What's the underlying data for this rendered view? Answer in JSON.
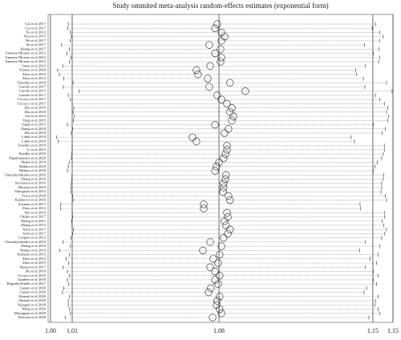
{
  "chart_data": {
    "type": "forest",
    "title": "Study ommited meta-analysis random-effects estimates (exponential form)",
    "categories": [
      "Cai et al 2017",
      "Cai et al 2017",
      "Xu et al 2013",
      "Vera et al 2015",
      "Hu et al 2017",
      "Su et al 2017",
      "Hoang et al 2017",
      "Jimenez-Moreno et al 2012",
      "Jimenez-Moreno et al 2012",
      "Jimenez-Moreno et al 2012",
      "Omer et al 2013",
      "Yoneno et al 2020",
      "Zhou et al 2016",
      "Zhou et al 2014",
      "Ebrahim et al 2018",
      "Garrido et al 2017",
      "Garrido et al 2015",
      "Garrido et al 2017",
      "Ciccacci et al 2017",
      "Ciccacci et al 2017",
      "Zhu et al 2016",
      "Zhu et al 2016",
      "Lin et al 2014",
      "Yang et al 2015",
      "Singh et al 2015",
      "Zhang et al 2018",
      "Zhu et al 2019",
      "Labib et al 2019",
      "Labib et al 2019",
      "Fesenko et al 2019",
      "Li et al 2015",
      "Kindler et al 2019",
      "Papathanasiou et al 2020",
      "Okabe et al 2014",
      "Mahara et al 2018",
      "Mahara et al 2018",
      "Chatzikyriakidou et al 2010",
      "Zhang et al 2010",
      "Srivastava et al 2016",
      "Hiraoka et al 2019",
      "Sakoguchi et al 2013",
      "Vreca et al 2018",
      "Kaidarova et al 2016",
      "Ausman et al 2017",
      "Zhou et al 2012",
      "Wei et al 2014",
      "Okubo et al 2017",
      "Zhang et al 2011",
      "Zhang et al 2013",
      "Avila et al 2017",
      "Avila et al 2017",
      "Lofgren et al 2012",
      "Chatzikyriakidou et al 2010",
      "Zhang et al 2010",
      "Shaker et al 2019",
      "Hashemi et al 2013",
      "Zhou et al 2012",
      "Zhou et al 2015",
      "Hassen et al 2017",
      "Hu et al 2019",
      "Ciccacci et al 2016",
      "Ayadeen et al 2018",
      "Boguska-Kubik et al 2017",
      "Caputo et al 2020",
      "Caputo et al 2020",
      "Ahmadi et al 2020",
      "Ahmadi et al 2020",
      "Vajargah et al 2018",
      "Wang et al 2020",
      "Massignan et al 2020",
      "Keewan et al 2020"
    ],
    "values": [
      1.0754,
      1.0744,
      1.0773,
      1.0787,
      1.0773,
      1.0718,
      1.0769,
      1.0744,
      1.0773,
      1.0769,
      1.0722,
      1.066,
      1.0667,
      1.0711,
      1.0812,
      1.0718,
      1.0881,
      1.0754,
      1.0773,
      1.0798,
      1.082,
      1.0812,
      1.0827,
      1.082,
      1.0744,
      1.0805,
      1.0787,
      1.0642,
      1.066,
      1.0798,
      1.0798,
      1.0791,
      1.0783,
      1.0762,
      1.0751,
      1.0744,
      1.0794,
      1.0791,
      1.0783,
      1.0783,
      1.078,
      1.0805,
      1.0812,
      1.0693,
      1.0693,
      1.0798,
      1.0802,
      1.0787,
      1.0794,
      1.0812,
      1.0802,
      1.0783,
      1.0722,
      1.0773,
      1.0689,
      1.0765,
      1.0736,
      1.0758,
      1.0722,
      1.0744,
      1.0765,
      1.0744,
      1.0758,
      1.0725,
      1.0715,
      1.0765,
      1.0754,
      1.0751,
      1.0765,
      1.0773,
      1.0733
    ],
    "lower": [
      1.008,
      1.0078,
      1.009,
      1.0095,
      1.0088,
      1.005,
      1.0085,
      1.0075,
      1.0092,
      1.0086,
      1.0055,
      1.0032,
      1.004,
      1.006,
      1.0102,
      1.0058,
      1.013,
      1.008,
      1.009,
      1.0098,
      1.0105,
      1.0102,
      1.0108,
      1.0104,
      1.0076,
      1.01,
      1.0094,
      1.0028,
      1.0035,
      1.0098,
      1.0098,
      1.0096,
      1.0094,
      1.0084,
      1.008,
      1.0076,
      1.0097,
      1.0096,
      1.0094,
      1.0093,
      1.0092,
      1.01,
      1.0102,
      1.0045,
      1.0046,
      1.0098,
      1.01,
      1.0095,
      1.0097,
      1.0103,
      1.01,
      1.0093,
      1.0056,
      1.009,
      1.0042,
      1.0086,
      1.007,
      1.0082,
      1.0056,
      1.0076,
      1.0086,
      1.0076,
      1.0082,
      1.006,
      1.0054,
      1.0086,
      1.008,
      1.008,
      1.0086,
      1.009,
      1.0066
    ],
    "upper": [
      1.147,
      1.1455,
      1.149,
      1.1505,
      1.1488,
      1.142,
      1.1485,
      1.146,
      1.149,
      1.1484,
      1.1425,
      1.138,
      1.1385,
      1.1415,
      1.152,
      1.1422,
      1.1545,
      1.147,
      1.149,
      1.151,
      1.1525,
      1.152,
      1.153,
      1.1525,
      1.146,
      1.1515,
      1.15,
      1.136,
      1.1375,
      1.151,
      1.151,
      1.1505,
      1.1498,
      1.1478,
      1.1468,
      1.146,
      1.1507,
      1.1505,
      1.1498,
      1.1498,
      1.1495,
      1.1515,
      1.152,
      1.14,
      1.1402,
      1.151,
      1.1512,
      1.15,
      1.1507,
      1.152,
      1.1512,
      1.1498,
      1.1425,
      1.149,
      1.1398,
      1.1482,
      1.1445,
      1.1475,
      1.1425,
      1.146,
      1.1482,
      1.146,
      1.1475,
      1.143,
      1.1418,
      1.1482,
      1.147,
      1.1468,
      1.1482,
      1.149,
      1.144
    ],
    "xlim": [
      1.0,
      1.1549
    ],
    "xticks": [
      {
        "value": 1.0,
        "label": "1.00"
      },
      {
        "value": 1.0098,
        "label": "1.01"
      },
      {
        "value": 1.0762,
        "label": "1.08"
      },
      {
        "value": 1.1458,
        "label": "1.15"
      },
      {
        "value": 1.1549,
        "label": "1.15"
      }
    ]
  }
}
